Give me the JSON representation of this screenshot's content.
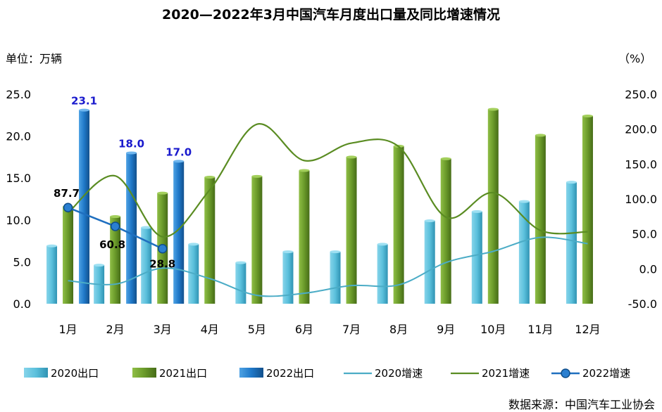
{
  "title": "2020—2022年3月中国汽车月度出口量及同比增速情况",
  "unit_left": "单位：万辆",
  "unit_right": "（%）",
  "source": "数据来源：中国汽车工业协会",
  "colors": {
    "bar2020": "#5bc0dc",
    "bar2021": "#6a9a2a",
    "bar2022": "#1f78c8",
    "line2020": "#4bacc6",
    "line2021": "#5a8c22",
    "line2022": "#1f6fbf"
  },
  "chart_data": {
    "type": "bar",
    "categories": [
      "1月",
      "2月",
      "3月",
      "4月",
      "5月",
      "6月",
      "7月",
      "8月",
      "9月",
      "10月",
      "11月",
      "12月"
    ],
    "y_left": {
      "min": 0,
      "max": 25,
      "step": 5,
      "ticks": [
        "0.0",
        "5.0",
        "10.0",
        "15.0",
        "20.0",
        "25.0"
      ]
    },
    "y_right": {
      "min": -50,
      "max": 250,
      "step": 50,
      "ticks": [
        "-50.0",
        "0.0",
        "50.0",
        "100.0",
        "150.0",
        "200.0",
        "250.0"
      ]
    },
    "bar_series": [
      {
        "name": "2020出口",
        "values": [
          6.9,
          4.6,
          9.1,
          7.1,
          4.9,
          6.2,
          6.2,
          7.1,
          9.9,
          11.0,
          12.2,
          14.5
        ]
      },
      {
        "name": "2021出口",
        "values": [
          11.6,
          10.4,
          13.2,
          15.1,
          15.2,
          15.9,
          17.5,
          18.8,
          17.3,
          23.2,
          20.1,
          22.4
        ]
      },
      {
        "name": "2022出口",
        "values": [
          23.1,
          18.0,
          17.0
        ],
        "labels": [
          "23.1",
          "18.0",
          "17.0"
        ]
      }
    ],
    "line_series": [
      {
        "name": "2020增速",
        "values": [
          -17,
          -22,
          1,
          -14,
          -38,
          -35,
          -24,
          -23,
          9,
          25,
          45,
          36
        ]
      },
      {
        "name": "2021增速",
        "values": [
          80,
          133,
          46,
          113,
          207,
          155,
          180,
          175,
          74,
          109,
          55,
          53
        ]
      },
      {
        "name": "2022增速",
        "values": [
          87.7,
          60.8,
          28.8
        ],
        "labels": [
          "87.7",
          "60.8",
          "28.8"
        ]
      }
    ],
    "legend": [
      "2020出口",
      "2021出口",
      "2022出口",
      "2020增速",
      "2021增速",
      "2022增速"
    ],
    "grid": false,
    "legend_position": "bottom"
  }
}
